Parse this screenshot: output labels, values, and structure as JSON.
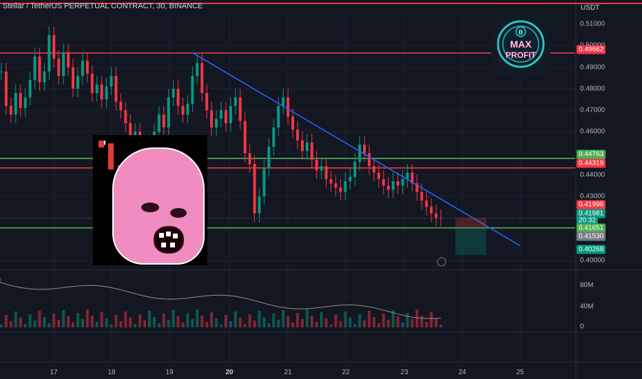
{
  "header": {
    "title": "Stellar / TetherUS PERPETUAL CONTRACT, 30, BINANCE",
    "currency": "USDT"
  },
  "chart_data": {
    "type": "candlestick",
    "series": [
      {
        "name": "price",
        "description_values": "close prices",
        "values": [
          0.488,
          0.472,
          0.468,
          0.478,
          0.471,
          0.476,
          0.484,
          0.495,
          0.483,
          0.488,
          0.505,
          0.494,
          0.486,
          0.497,
          0.49,
          0.48,
          0.486,
          0.493,
          0.487,
          0.478,
          0.482,
          0.475,
          0.481,
          0.486,
          0.474,
          0.47,
          0.464,
          0.457,
          0.46,
          0.45,
          0.448,
          0.455,
          0.46,
          0.468,
          0.462,
          0.476,
          0.48,
          0.472,
          0.468,
          0.473,
          0.486,
          0.492,
          0.478,
          0.47,
          0.462,
          0.466,
          0.47,
          0.464,
          0.472,
          0.476,
          0.465,
          0.45,
          0.445,
          0.422,
          0.43,
          0.443,
          0.453,
          0.462,
          0.472,
          0.476,
          0.467,
          0.461,
          0.456,
          0.451,
          0.455,
          0.447,
          0.442,
          0.444,
          0.438,
          0.436,
          0.434,
          0.432,
          0.437,
          0.439,
          0.446,
          0.454,
          0.45,
          0.444,
          0.441,
          0.438,
          0.435,
          0.433,
          0.437,
          0.435,
          0.438,
          0.441,
          0.436,
          0.432,
          0.428,
          0.425,
          0.422,
          0.42,
          0.4198
        ]
      }
    ],
    "x_ticks": [
      "17",
      "18",
      "19",
      "20",
      "21",
      "22",
      "23",
      "24",
      "25"
    ],
    "x_bold_tick": "20",
    "y_ticks": [
      "0.51000",
      "0.50000",
      "0.49000",
      "0.48000",
      "0.47000",
      "0.46000",
      "0.45000",
      "0.44000",
      "0.43000",
      "0.40000"
    ],
    "ylim": [
      0.3995,
      0.5155
    ],
    "volume_ticks": [
      "80M",
      "40M",
      "0"
    ],
    "horizontal_levels": [
      {
        "label": "0.49662",
        "value": 0.49662,
        "color": "#f23645"
      },
      {
        "label": "0.44763",
        "value": 0.44763,
        "color": "#4caf50"
      },
      {
        "label": "0.44319",
        "value": 0.44319,
        "color": "#f23645"
      },
      {
        "label": "0.41530",
        "value": 0.4153,
        "color": "#4caf50"
      }
    ],
    "price_badges": [
      {
        "label": "0.41998",
        "value": 0.41998,
        "color": "#f23645"
      },
      {
        "label": "0.41981",
        "value": 0.41981,
        "color": "#089981"
      },
      {
        "label": "20:32",
        "value": 0.4165,
        "color": "#089981"
      },
      {
        "label": "0.41651",
        "value": 0.41651,
        "color": "#4caf50"
      },
      {
        "label": "0.41530",
        "value": 0.4153,
        "color": "#787b86"
      },
      {
        "label": "0.40268",
        "value": 0.40268,
        "color": "#089981"
      }
    ],
    "trendline": {
      "from": 0.497,
      "to": 0.407,
      "color": "#2962ff"
    }
  },
  "logo": {
    "top_text": "B",
    "line1": "MAX",
    "line2": "PROFIT"
  },
  "colors": {
    "up": "#089981",
    "down": "#f23645",
    "bg": "#131722",
    "grid": "#1f2330"
  }
}
